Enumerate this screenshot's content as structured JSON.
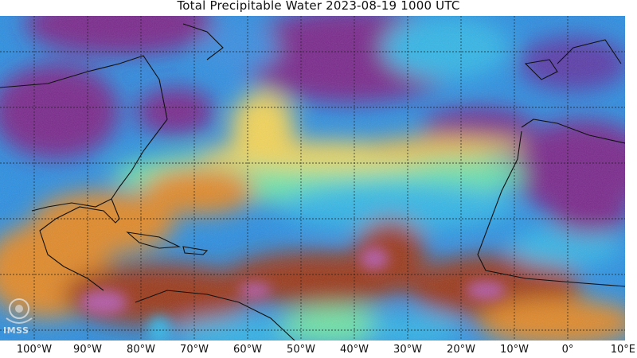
{
  "title": "Total Precipitable Water  2023-08-19 1000 UTC",
  "logo_text": "IMSS",
  "x_axis": {
    "ticks": [
      "100°W",
      "90°W",
      "80°W",
      "70°W",
      "60°W",
      "50°W",
      "40°W",
      "30°W",
      "20°W",
      "10°W",
      "0°",
      "10°E"
    ]
  },
  "colors": {
    "very_dry": "#7a2a8c",
    "dry": "#2f6bd6",
    "moderate_dry": "#35b6e6",
    "moderate": "#6fe3a8",
    "moist": "#f1d35a",
    "wet": "#e08a2a",
    "very_wet": "#9b3a1e",
    "extreme": "#b25aa6"
  }
}
